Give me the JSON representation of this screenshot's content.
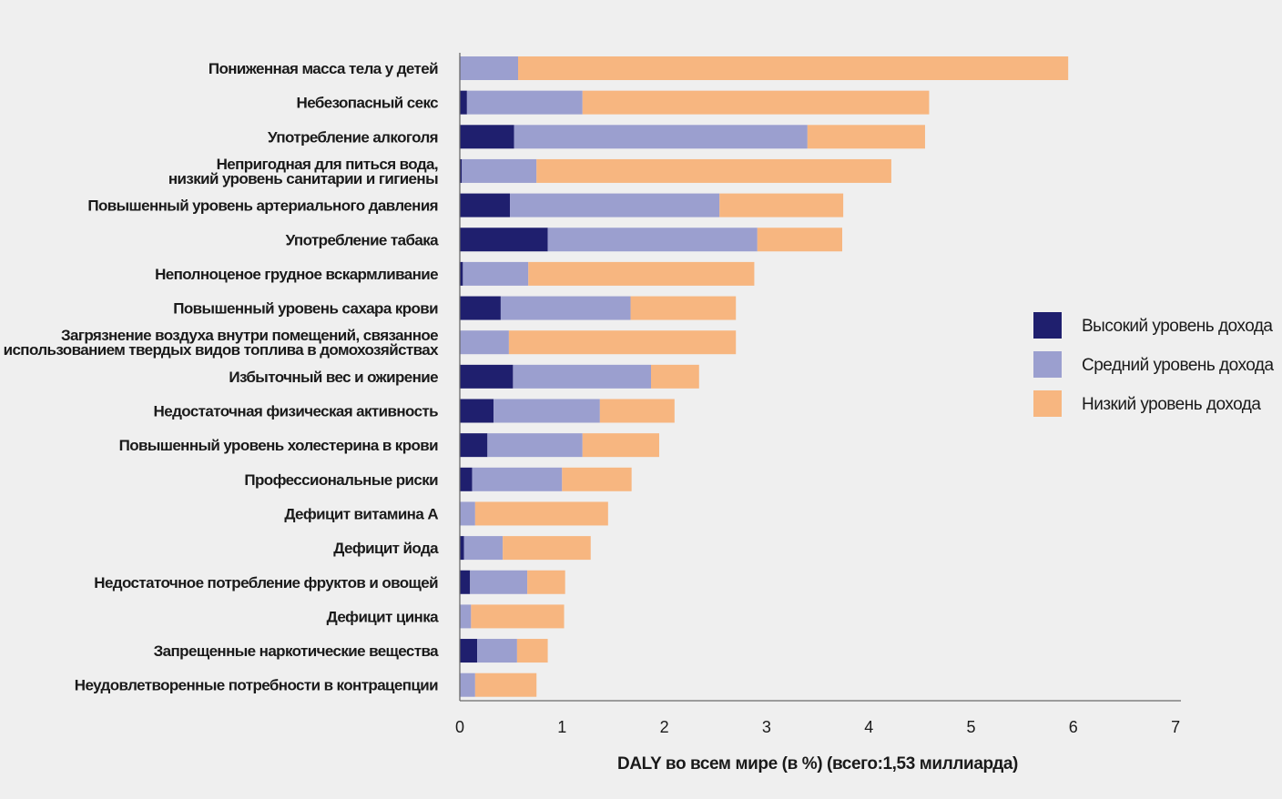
{
  "chart_data": {
    "type": "bar",
    "orientation": "horizontal",
    "stacked": true,
    "xlabel": "DALY во всем мире (в %) (всего:1,53 миллиарда)",
    "xlim": [
      0,
      7
    ],
    "xticks": [
      "0",
      "1",
      "2",
      "3",
      "4",
      "5",
      "6",
      "7"
    ],
    "grid": false,
    "legend_position": "right",
    "categories": [
      [
        "Пониженная масса тела у детей"
      ],
      [
        "Небезопасный секс"
      ],
      [
        "Употребление алкоголя"
      ],
      [
        "Непригодная для питься вода,",
        "низкий уровень санитарии и гигиены"
      ],
      [
        "Повышенный уровень артериального давления"
      ],
      [
        "Употребление табака"
      ],
      [
        "Неполноценое грудное вскармливание"
      ],
      [
        "Повышенный уровень сахара крови"
      ],
      [
        "Загрязнение воздуха внутри помещений, связанное",
        "с использованием твердых видов топлива в домохозяйствах"
      ],
      [
        "Избыточный вес и ожирение"
      ],
      [
        "Недостаточная физическая активность"
      ],
      [
        "Повышенный уровень холестерина в крови"
      ],
      [
        "Профессиональные риски"
      ],
      [
        "Дефицит витамина А"
      ],
      [
        "Дефицит йода"
      ],
      [
        "Недостаточное потребление фруктов и овощей"
      ],
      [
        "Дефицит цинка"
      ],
      [
        "Запрещенные наркотические вещества"
      ],
      [
        "Неудовлетворенные потребности в контрацепции"
      ]
    ],
    "series": [
      {
        "name": "Высокий уровень дохода",
        "color": "#1f1f6e",
        "values": [
          0.0,
          0.07,
          0.53,
          0.02,
          0.49,
          0.86,
          0.03,
          0.4,
          0.0,
          0.52,
          0.33,
          0.27,
          0.12,
          0.0,
          0.04,
          0.1,
          0.0,
          0.17,
          0.0
        ]
      },
      {
        "name": "Средний уровень дохода",
        "color": "#9b9fcf",
        "values": [
          0.57,
          1.13,
          2.87,
          0.73,
          2.05,
          2.05,
          0.64,
          1.27,
          0.48,
          1.35,
          1.04,
          0.93,
          0.88,
          0.15,
          0.38,
          0.56,
          0.11,
          0.39,
          0.15
        ]
      },
      {
        "name": "Низкий уровень дохода",
        "color": "#f7b680",
        "values": [
          5.38,
          3.39,
          1.15,
          3.47,
          1.21,
          0.83,
          2.21,
          1.03,
          2.22,
          0.47,
          0.73,
          0.75,
          0.68,
          1.3,
          0.86,
          0.37,
          0.91,
          0.3,
          0.6
        ]
      }
    ]
  }
}
